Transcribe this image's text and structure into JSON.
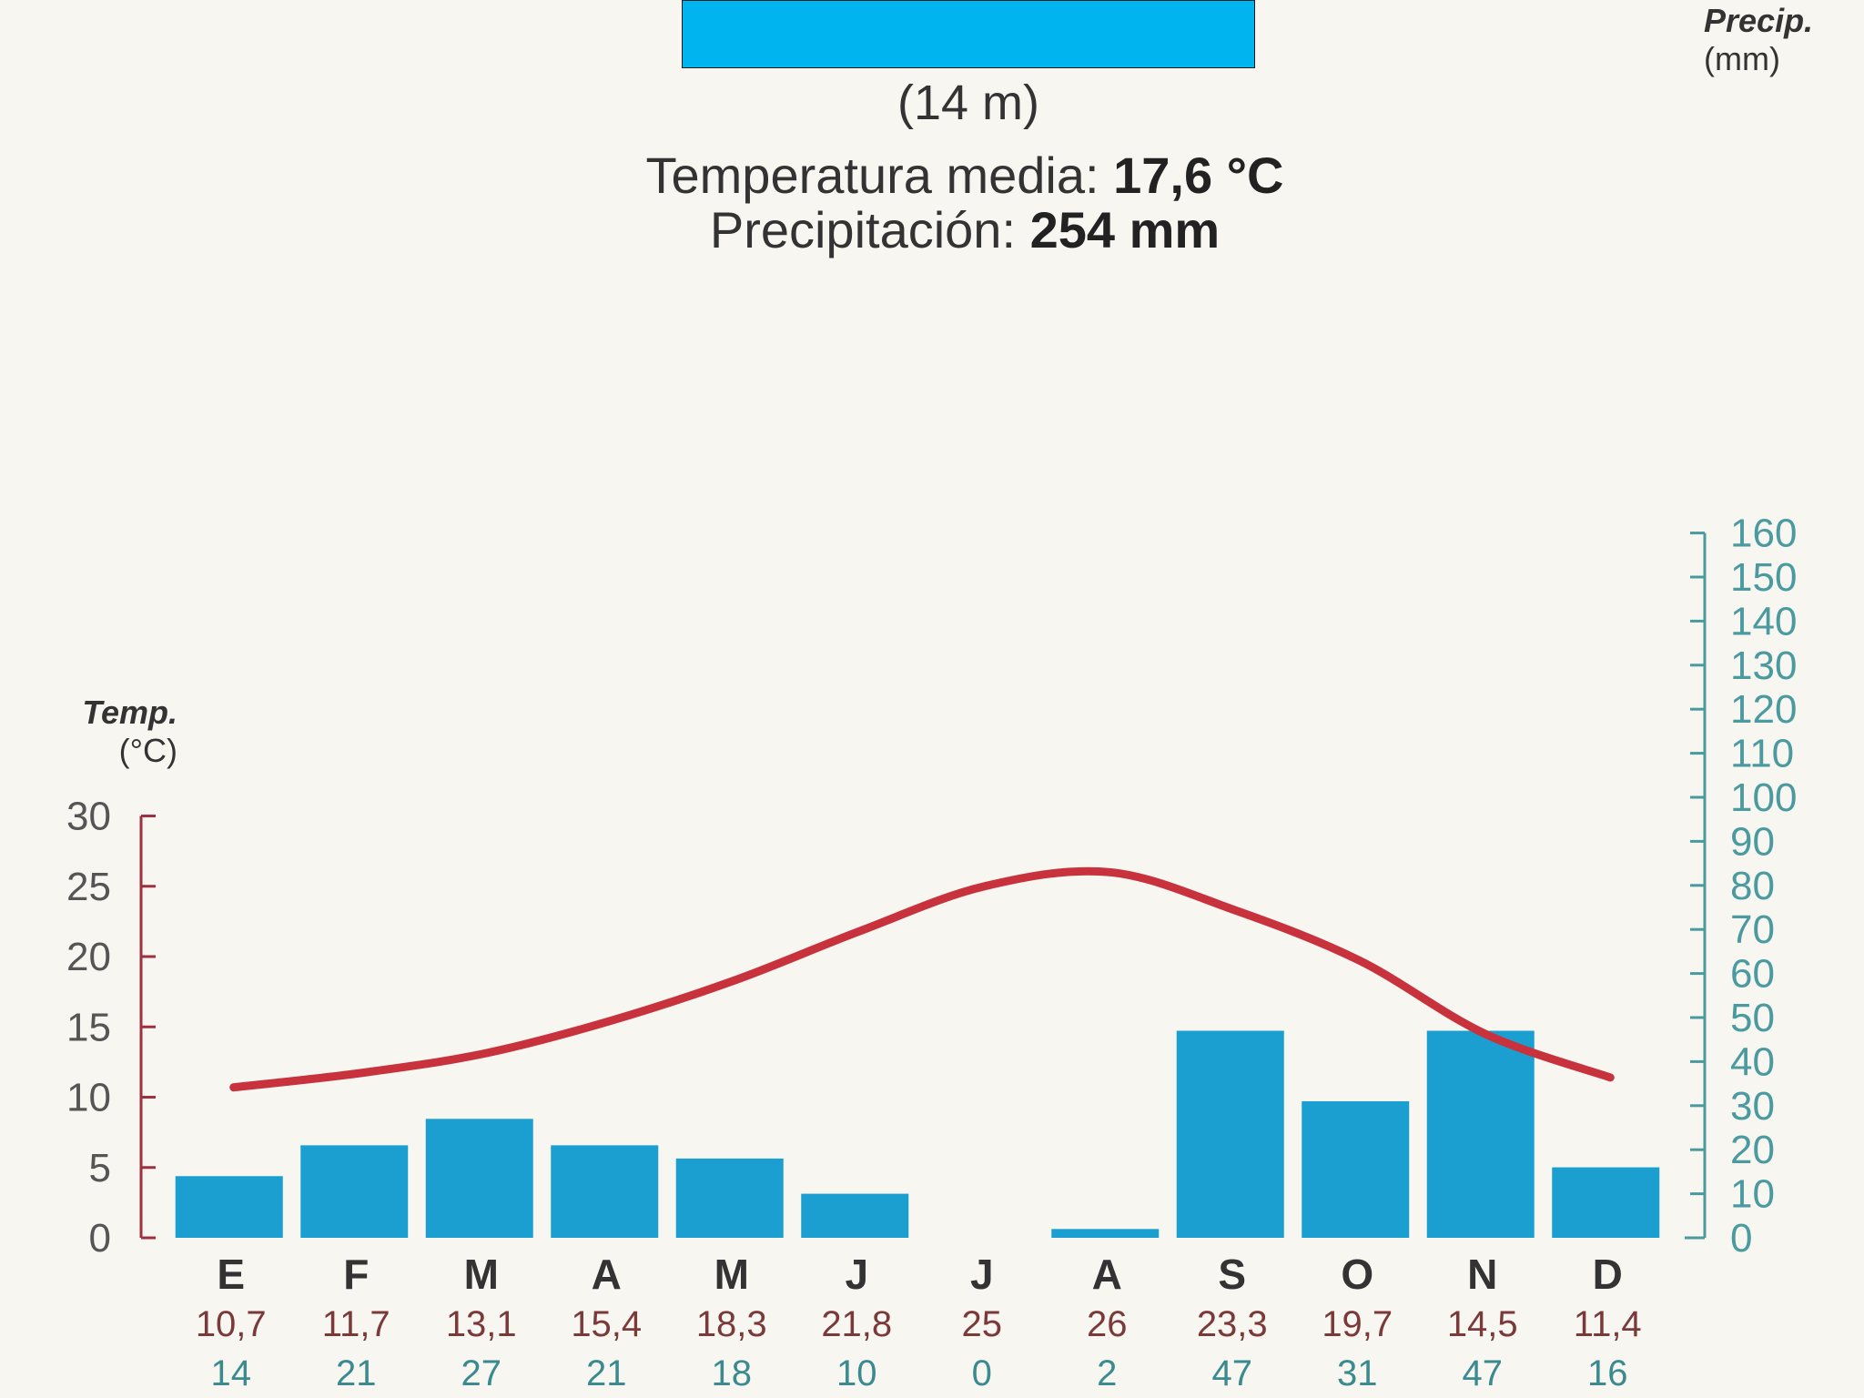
{
  "header": {
    "altitude": "(14 m)",
    "temp_label": "Temperatura media:",
    "temp_value": "17,6 °C",
    "precip_label": "Precipitación:",
    "precip_value": "254 mm"
  },
  "colors": {
    "bar": "#1a9fd0",
    "temp_line": "#c8323c",
    "temp_axis": "#a03040",
    "precip_axis": "#4a9aa0",
    "title_box": "#00b4f0"
  },
  "chart_data": {
    "type": "bar",
    "categories": [
      "E",
      "F",
      "M",
      "A",
      "M",
      "J",
      "J",
      "A",
      "S",
      "O",
      "N",
      "D"
    ],
    "temperature_labels": [
      "10,7",
      "11,7",
      "13,1",
      "15,4",
      "18,3",
      "21,8",
      "25",
      "26",
      "23,3",
      "19,7",
      "14,5",
      "11,4"
    ],
    "precipitation_labels": [
      "14",
      "21",
      "27",
      "21",
      "18",
      "10",
      "0",
      "2",
      "47",
      "31",
      "47",
      "16"
    ],
    "series": [
      {
        "name": "Precip.",
        "type": "bar",
        "axis": "right",
        "values": [
          14,
          21,
          27,
          21,
          18,
          10,
          0,
          2,
          47,
          31,
          47,
          16
        ]
      },
      {
        "name": "Temp.",
        "type": "line",
        "axis": "left",
        "values": [
          10.7,
          11.7,
          13.1,
          15.4,
          18.3,
          21.8,
          25,
          26,
          23.3,
          19.7,
          14.5,
          11.4
        ]
      }
    ],
    "left_axis": {
      "label": "Temp.",
      "unit": "(°C)",
      "ylim": [
        0,
        30
      ],
      "ticks": [
        "0",
        "5",
        "10",
        "15",
        "20",
        "25",
        "30"
      ]
    },
    "right_axis": {
      "label": "Precip.",
      "unit": "(mm)",
      "ylim": [
        0,
        160
      ],
      "ticks": [
        "0",
        "10",
        "20",
        "30",
        "40",
        "50",
        "60",
        "70",
        "80",
        "90",
        "100",
        "110",
        "120",
        "130",
        "140",
        "150",
        "160"
      ]
    },
    "grid": false,
    "legend": "none"
  }
}
